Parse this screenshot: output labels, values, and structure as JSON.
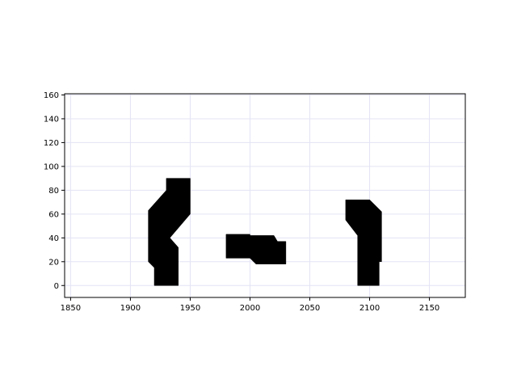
{
  "chart_data": {
    "type": "area",
    "title": "",
    "xlabel": "",
    "ylabel": "",
    "xlim": [
      1845,
      2180
    ],
    "ylim": [
      -10,
      161
    ],
    "xticks": [
      1850,
      1900,
      1950,
      2000,
      2050,
      2100,
      2150
    ],
    "yticks": [
      0,
      20,
      40,
      60,
      80,
      100,
      120,
      140,
      160
    ],
    "grid": true,
    "colors": {
      "fill": "#000000",
      "grid": "#e3e3f5",
      "axis": "#000000"
    },
    "shapes": [
      {
        "label": "",
        "points": [
          [
            1920,
            0
          ],
          [
            1940,
            0
          ],
          [
            1940,
            32
          ],
          [
            1933,
            40
          ],
          [
            1950,
            60
          ],
          [
            1950,
            90
          ],
          [
            1930,
            90
          ],
          [
            1930,
            80
          ],
          [
            1915,
            63
          ],
          [
            1915,
            20
          ],
          [
            1920,
            15
          ]
        ]
      },
      {
        "label": "",
        "points": [
          [
            1980,
            23
          ],
          [
            2000,
            23
          ],
          [
            2005,
            18
          ],
          [
            2030,
            18
          ],
          [
            2030,
            37
          ],
          [
            2023,
            37
          ],
          [
            2020,
            42
          ],
          [
            2000,
            42
          ],
          [
            2000,
            43
          ],
          [
            1980,
            43
          ]
        ]
      },
      {
        "label": "",
        "points": [
          [
            2090,
            0
          ],
          [
            2108,
            0
          ],
          [
            2108,
            20
          ],
          [
            2110,
            20
          ],
          [
            2110,
            62
          ],
          [
            2100,
            72
          ],
          [
            2080,
            72
          ],
          [
            2080,
            55
          ],
          [
            2090,
            42
          ]
        ]
      }
    ]
  }
}
